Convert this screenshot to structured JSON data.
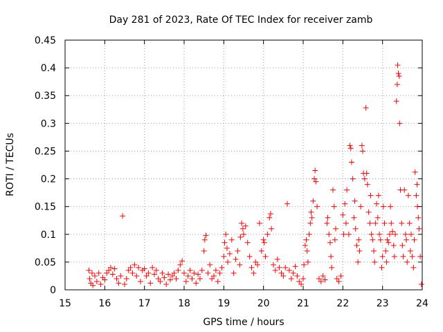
{
  "chart_data": {
    "type": "scatter",
    "title": "Day 281 of 2023, Rate Of TEC Index for receiver zamb",
    "xlabel": "GPS time / hours",
    "ylabel": "ROTI / TECUs",
    "xlim": [
      15,
      24
    ],
    "ylim": [
      0,
      0.45
    ],
    "x_ticks": [
      "15",
      "16",
      "17",
      "18",
      "19",
      "20",
      "21",
      "22",
      "23",
      "24"
    ],
    "y_ticks": [
      "0",
      "0.05",
      "0.1",
      "0.15",
      "0.2",
      "0.25",
      "0.3",
      "0.35",
      "0.4",
      "0.45"
    ],
    "grid": true,
    "marker": "+",
    "color": "#ff0000",
    "series": [
      {
        "points": [
          [
            15.6,
            0.035
          ],
          [
            15.62,
            0.02
          ],
          [
            15.65,
            0.012
          ],
          [
            15.68,
            0.03
          ],
          [
            15.7,
            0.008
          ],
          [
            15.75,
            0.025
          ],
          [
            15.8,
            0.015
          ],
          [
            15.85,
            0.03
          ],
          [
            15.9,
            0.01
          ],
          [
            15.95,
            0.022
          ],
          [
            16.0,
            0.018
          ],
          [
            16.05,
            0.03
          ],
          [
            16.1,
            0.035
          ],
          [
            16.15,
            0.04
          ],
          [
            16.2,
            0.028
          ],
          [
            16.25,
            0.038
          ],
          [
            16.3,
            0.02
          ],
          [
            16.35,
            0.012
          ],
          [
            16.4,
            0.025
          ],
          [
            16.45,
            0.133
          ],
          [
            16.5,
            0.01
          ],
          [
            16.55,
            0.02
          ],
          [
            16.6,
            0.035
          ],
          [
            16.65,
            0.04
          ],
          [
            16.7,
            0.03
          ],
          [
            16.75,
            0.045
          ],
          [
            16.8,
            0.025
          ],
          [
            16.85,
            0.04
          ],
          [
            16.9,
            0.015
          ],
          [
            16.95,
            0.035
          ],
          [
            17.0,
            0.038
          ],
          [
            17.05,
            0.025
          ],
          [
            17.1,
            0.03
          ],
          [
            17.15,
            0.012
          ],
          [
            17.2,
            0.04
          ],
          [
            17.25,
            0.028
          ],
          [
            17.3,
            0.035
          ],
          [
            17.35,
            0.02
          ],
          [
            17.4,
            0.015
          ],
          [
            17.45,
            0.03
          ],
          [
            17.5,
            0.022
          ],
          [
            17.55,
            0.01
          ],
          [
            17.6,
            0.028
          ],
          [
            17.65,
            0.018
          ],
          [
            17.7,
            0.025
          ],
          [
            17.75,
            0.03
          ],
          [
            17.8,
            0.02
          ],
          [
            17.85,
            0.035
          ],
          [
            17.9,
            0.045
          ],
          [
            17.95,
            0.052
          ],
          [
            18.0,
            0.03
          ],
          [
            18.05,
            0.015
          ],
          [
            18.1,
            0.025
          ],
          [
            18.15,
            0.035
          ],
          [
            18.2,
            0.02
          ],
          [
            18.25,
            0.03
          ],
          [
            18.3,
            0.012
          ],
          [
            18.35,
            0.028
          ],
          [
            18.4,
            0.02
          ],
          [
            18.45,
            0.035
          ],
          [
            18.5,
            0.07
          ],
          [
            18.52,
            0.09
          ],
          [
            18.55,
            0.098
          ],
          [
            18.6,
            0.03
          ],
          [
            18.65,
            0.045
          ],
          [
            18.7,
            0.02
          ],
          [
            18.75,
            0.025
          ],
          [
            18.8,
            0.035
          ],
          [
            18.85,
            0.015
          ],
          [
            18.9,
            0.03
          ],
          [
            18.95,
            0.04
          ],
          [
            19.0,
            0.06
          ],
          [
            19.02,
            0.085
          ],
          [
            19.05,
            0.1
          ],
          [
            19.08,
            0.075
          ],
          [
            19.1,
            0.05
          ],
          [
            19.15,
            0.065
          ],
          [
            19.2,
            0.09
          ],
          [
            19.25,
            0.03
          ],
          [
            19.3,
            0.055
          ],
          [
            19.35,
            0.07
          ],
          [
            19.4,
            0.045
          ],
          [
            19.42,
            0.095
          ],
          [
            19.45,
            0.12
          ],
          [
            19.48,
            0.11
          ],
          [
            19.5,
            0.1
          ],
          [
            19.55,
            0.115
          ],
          [
            19.6,
            0.085
          ],
          [
            19.65,
            0.06
          ],
          [
            19.7,
            0.04
          ],
          [
            19.75,
            0.03
          ],
          [
            19.8,
            0.05
          ],
          [
            19.85,
            0.045
          ],
          [
            19.9,
            0.12
          ],
          [
            19.95,
            0.07
          ],
          [
            20.0,
            0.09
          ],
          [
            20.02,
            0.085
          ],
          [
            20.05,
            0.06
          ],
          [
            20.1,
            0.1
          ],
          [
            20.15,
            0.13
          ],
          [
            20.18,
            0.137
          ],
          [
            20.2,
            0.11
          ],
          [
            20.25,
            0.045
          ],
          [
            20.3,
            0.035
          ],
          [
            20.35,
            0.055
          ],
          [
            20.4,
            0.04
          ],
          [
            20.45,
            0.03
          ],
          [
            20.5,
            0.025
          ],
          [
            20.55,
            0.04
          ],
          [
            20.6,
            0.155
          ],
          [
            20.65,
            0.035
          ],
          [
            20.7,
            0.02
          ],
          [
            20.75,
            0.03
          ],
          [
            20.8,
            0.042
          ],
          [
            20.85,
            0.025
          ],
          [
            20.9,
            0.015
          ],
          [
            20.95,
            0.01
          ],
          [
            21.0,
            0.02
          ],
          [
            21.02,
            0.045
          ],
          [
            21.05,
            0.08
          ],
          [
            21.08,
            0.09
          ],
          [
            21.1,
            0.07
          ],
          [
            21.12,
            0.05
          ],
          [
            21.15,
            0.1
          ],
          [
            21.18,
            0.12
          ],
          [
            21.2,
            0.14
          ],
          [
            21.22,
            0.13
          ],
          [
            21.25,
            0.16
          ],
          [
            21.28,
            0.2
          ],
          [
            21.3,
            0.215
          ],
          [
            21.32,
            0.195
          ],
          [
            21.35,
            0.15
          ],
          [
            21.4,
            0.02
          ],
          [
            21.45,
            0.015
          ],
          [
            21.5,
            0.025
          ],
          [
            21.55,
            0.018
          ],
          [
            21.6,
            0.12
          ],
          [
            21.62,
            0.13
          ],
          [
            21.65,
            0.1
          ],
          [
            21.68,
            0.085
          ],
          [
            21.7,
            0.06
          ],
          [
            21.72,
            0.04
          ],
          [
            21.75,
            0.18
          ],
          [
            21.78,
            0.15
          ],
          [
            21.8,
            0.09
          ],
          [
            21.82,
            0.11
          ],
          [
            21.85,
            0.02
          ],
          [
            21.9,
            0.015
          ],
          [
            21.95,
            0.025
          ],
          [
            22.0,
            0.135
          ],
          [
            22.02,
            0.1
          ],
          [
            22.05,
            0.155
          ],
          [
            22.08,
            0.12
          ],
          [
            22.1,
            0.18
          ],
          [
            22.15,
            0.1
          ],
          [
            22.18,
            0.26
          ],
          [
            22.2,
            0.255
          ],
          [
            22.22,
            0.23
          ],
          [
            22.25,
            0.2
          ],
          [
            22.28,
            0.13
          ],
          [
            22.3,
            0.16
          ],
          [
            22.32,
            0.11
          ],
          [
            22.35,
            0.08
          ],
          [
            22.38,
            0.05
          ],
          [
            22.4,
            0.09
          ],
          [
            22.42,
            0.07
          ],
          [
            22.45,
            0.15
          ],
          [
            22.48,
            0.26
          ],
          [
            22.5,
            0.25
          ],
          [
            22.52,
            0.21
          ],
          [
            22.55,
            0.2
          ],
          [
            22.58,
            0.328
          ],
          [
            22.6,
            0.21
          ],
          [
            22.62,
            0.19
          ],
          [
            22.65,
            0.14
          ],
          [
            22.68,
            0.12
          ],
          [
            22.7,
            0.17
          ],
          [
            22.72,
            0.1
          ],
          [
            22.75,
            0.09
          ],
          [
            22.78,
            0.07
          ],
          [
            22.8,
            0.05
          ],
          [
            22.82,
            0.12
          ],
          [
            22.85,
            0.155
          ],
          [
            22.88,
            0.13
          ],
          [
            22.9,
            0.17
          ],
          [
            22.92,
            0.1
          ],
          [
            22.95,
            0.09
          ],
          [
            22.98,
            0.04
          ],
          [
            23.0,
            0.06
          ],
          [
            23.02,
            0.15
          ],
          [
            23.05,
            0.12
          ],
          [
            23.08,
            0.07
          ],
          [
            23.1,
            0.05
          ],
          [
            23.12,
            0.09
          ],
          [
            23.15,
            0.085
          ],
          [
            23.18,
            0.1
          ],
          [
            23.2,
            0.15
          ],
          [
            23.22,
            0.12
          ],
          [
            23.25,
            0.105
          ],
          [
            23.28,
            0.08
          ],
          [
            23.3,
            0.06
          ],
          [
            23.32,
            0.1
          ],
          [
            23.35,
            0.34
          ],
          [
            23.37,
            0.37
          ],
          [
            23.38,
            0.405
          ],
          [
            23.4,
            0.39
          ],
          [
            23.42,
            0.385
          ],
          [
            23.43,
            0.3
          ],
          [
            23.45,
            0.18
          ],
          [
            23.48,
            0.12
          ],
          [
            23.5,
            0.08
          ],
          [
            23.52,
            0.06
          ],
          [
            23.55,
            0.18
          ],
          [
            23.58,
            0.1
          ],
          [
            23.6,
            0.09
          ],
          [
            23.62,
            0.05
          ],
          [
            23.65,
            0.17
          ],
          [
            23.68,
            0.12
          ],
          [
            23.7,
            0.07
          ],
          [
            23.72,
            0.1
          ],
          [
            23.75,
            0.06
          ],
          [
            23.78,
            0.04
          ],
          [
            23.8,
            0.09
          ],
          [
            23.82,
            0.212
          ],
          [
            23.85,
            0.17
          ],
          [
            23.87,
            0.19
          ],
          [
            23.88,
            0.15
          ],
          [
            23.9,
            0.13
          ],
          [
            23.92,
            0.11
          ],
          [
            23.95,
            0.06
          ],
          [
            23.98,
            0.01
          ]
        ]
      }
    ]
  }
}
